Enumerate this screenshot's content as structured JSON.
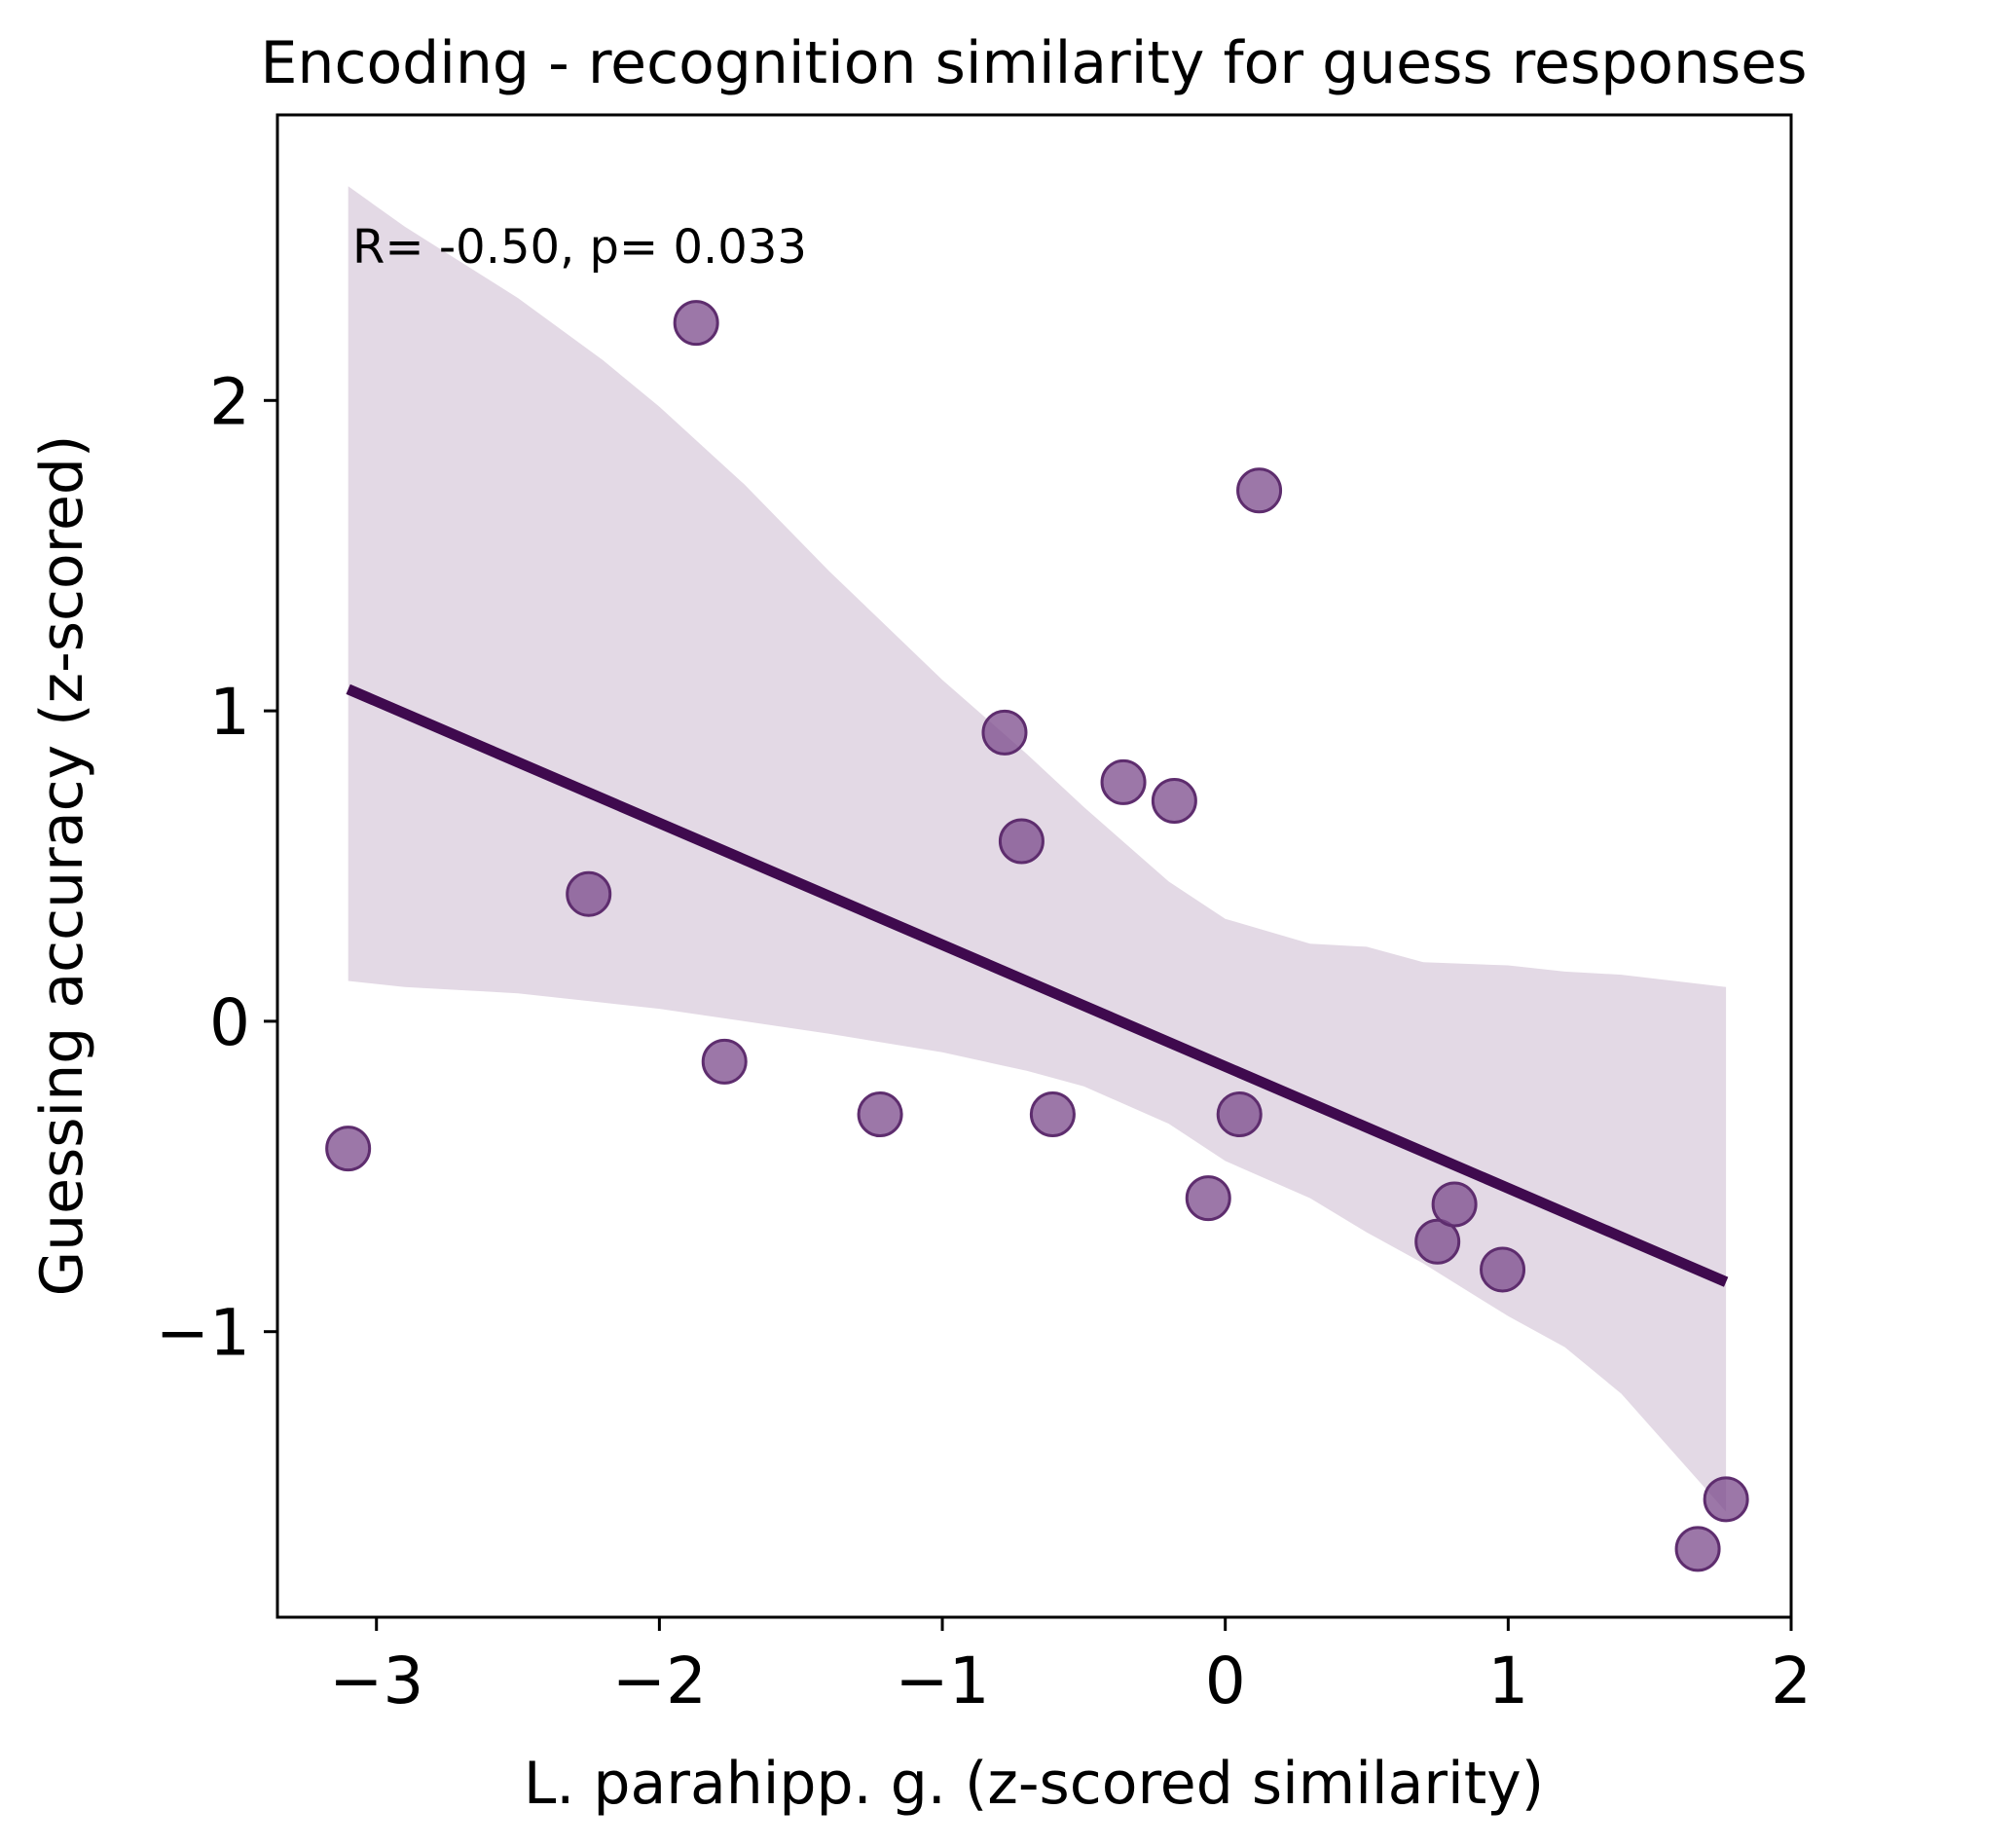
{
  "chart_data": {
    "type": "scatter",
    "title": "Encoding - recognition similarity for guess responses",
    "xlabel": "L. parahipp. g. (z-scored similarity)",
    "ylabel": "Guessing accuracy (z-scored)",
    "annotation": "R= -0.50, p= 0.033",
    "xlim": [
      -3.35,
      2.0
    ],
    "ylim": [
      -1.92,
      2.92
    ],
    "x_ticks": [
      -3,
      -2,
      -1,
      0,
      1,
      2
    ],
    "x_tick_labels": [
      "−3",
      "−2",
      "−1",
      "0",
      "1",
      "2"
    ],
    "y_ticks": [
      -1,
      0,
      1,
      2
    ],
    "y_tick_labels": [
      "−1",
      "0",
      "1",
      "2"
    ],
    "grid": false,
    "legend": "none",
    "colors": {
      "points": "#7b4a8b",
      "points_edge": "#5e2d6e",
      "fit_line": "#3f0a4e",
      "confidence_band": "#e3d9e5"
    },
    "points": [
      {
        "x": -3.1,
        "y": -0.41
      },
      {
        "x": -2.25,
        "y": 0.41
      },
      {
        "x": -1.87,
        "y": 2.25
      },
      {
        "x": -1.77,
        "y": -0.13
      },
      {
        "x": -1.22,
        "y": -0.3
      },
      {
        "x": -0.78,
        "y": 0.93
      },
      {
        "x": -0.72,
        "y": 0.58
      },
      {
        "x": -0.61,
        "y": -0.3
      },
      {
        "x": -0.36,
        "y": 0.77
      },
      {
        "x": -0.18,
        "y": 0.71
      },
      {
        "x": -0.06,
        "y": -0.57
      },
      {
        "x": 0.05,
        "y": -0.3
      },
      {
        "x": 0.12,
        "y": 1.71
      },
      {
        "x": 0.75,
        "y": -0.71
      },
      {
        "x": 0.81,
        "y": -0.59
      },
      {
        "x": 0.98,
        "y": -0.8
      },
      {
        "x": 1.67,
        "y": -1.7
      },
      {
        "x": 1.77,
        "y": -1.54
      }
    ],
    "fit_line": {
      "x": [
        -3.1,
        1.77
      ],
      "y": [
        1.07,
        -0.84
      ]
    },
    "confidence_band": {
      "x": [
        -3.1,
        -2.9,
        -2.5,
        -2.2,
        -2.0,
        -1.7,
        -1.4,
        -1.0,
        -0.7,
        -0.5,
        -0.2,
        0.0,
        0.3,
        0.5,
        0.7,
        1.0,
        1.2,
        1.4,
        1.77
      ],
      "upper": [
        2.69,
        2.56,
        2.33,
        2.13,
        1.98,
        1.73,
        1.45,
        1.1,
        0.86,
        0.69,
        0.45,
        0.33,
        0.25,
        0.24,
        0.19,
        0.18,
        0.16,
        0.15,
        0.11
      ],
      "lower": [
        0.13,
        0.11,
        0.09,
        0.06,
        0.04,
        0.0,
        -0.04,
        -0.1,
        -0.16,
        -0.21,
        -0.33,
        -0.45,
        -0.57,
        -0.68,
        -0.78,
        -0.95,
        -1.05,
        -1.2,
        -1.58
      ]
    }
  }
}
